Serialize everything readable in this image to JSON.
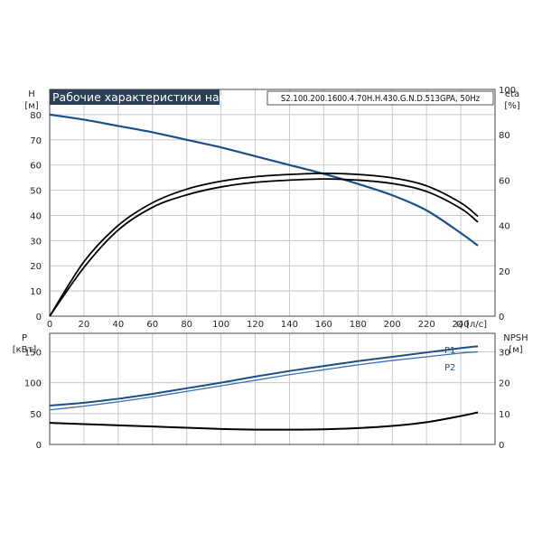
{
  "colors": {
    "title_bg": "#2b3f56",
    "h_curve": "#1a4f8a",
    "eta_curve": "#000000",
    "p1_curve": "#1a4f8a",
    "p2_curve": "#3a6fae",
    "npsh_curve": "#000000"
  },
  "chart_data": [
    {
      "type": "line",
      "title": "Рабочие характеристики насоса",
      "subtitle": "S2.100.200.1600.4.70H.H.430.G.N.D.513GPA, 50Hz",
      "xlabel": "Q [л/с]",
      "ylabel_left": "H",
      "ylabel_left_unit": "[м]",
      "ylabel_right": "eta",
      "ylabel_right_unit": "[%]",
      "xlim": [
        0,
        260
      ],
      "ylim_left": [
        0,
        90
      ],
      "ylim_right": [
        0,
        100
      ],
      "x_ticks": [
        0,
        20,
        40,
        60,
        80,
        100,
        120,
        140,
        160,
        180,
        200,
        220,
        240
      ],
      "y_ticks_left": [
        0,
        10,
        20,
        30,
        40,
        50,
        60,
        70,
        80
      ],
      "y_ticks_right": [
        0,
        20,
        40,
        60,
        80,
        100
      ],
      "grid": true,
      "series": [
        {
          "axis": "left",
          "color": "#1a4f8a",
          "x": [
            0,
            20,
            40,
            60,
            80,
            100,
            120,
            140,
            160,
            180,
            200,
            220,
            240,
            250
          ],
          "values": [
            80,
            78,
            75.5,
            73,
            70,
            67,
            63.5,
            60,
            56.5,
            52.5,
            48,
            42,
            33,
            28
          ]
        },
        {
          "axis": "right",
          "color": "#000000",
          "x": [
            0,
            20,
            40,
            60,
            80,
            100,
            120,
            140,
            160,
            180,
            200,
            220,
            240,
            250
          ],
          "values": [
            0,
            24,
            40,
            50,
            56,
            59.5,
            61.5,
            62.5,
            63,
            62.5,
            61,
            57.5,
            50,
            44
          ]
        },
        {
          "axis": "right",
          "color": "#000000",
          "x": [
            0,
            20,
            40,
            60,
            80,
            100,
            120,
            140,
            160,
            180,
            200,
            220,
            240,
            250
          ],
          "values": [
            0,
            21.5,
            38,
            48,
            53.5,
            57,
            59,
            60,
            60.5,
            60,
            58.5,
            55,
            47.5,
            41.5
          ]
        }
      ]
    },
    {
      "type": "line",
      "ylabel_left": "P",
      "ylabel_left_unit": "[кВт]",
      "ylabel_right": "NPSH",
      "ylabel_right_unit": "[м]",
      "xlim": [
        0,
        260
      ],
      "ylim_left": [
        0,
        180
      ],
      "ylim_right": [
        0,
        36
      ],
      "y_ticks_left": [
        0,
        50,
        100,
        150
      ],
      "y_ticks_right": [
        0,
        10,
        20,
        30
      ],
      "grid": true,
      "series": [
        {
          "name": "P1",
          "axis": "left",
          "color": "#1a4f8a",
          "x": [
            0,
            20,
            40,
            60,
            80,
            100,
            120,
            140,
            160,
            180,
            200,
            220,
            240,
            250
          ],
          "values": [
            63,
            67.5,
            74,
            82,
            91,
            100,
            110,
            119,
            127,
            135,
            142,
            149,
            156,
            159
          ]
        },
        {
          "name": "P2",
          "axis": "left",
          "color": "#3a6fae",
          "x": [
            0,
            20,
            40,
            60,
            80,
            100,
            120,
            140,
            160,
            180,
            200,
            220,
            240,
            250
          ],
          "values": [
            56,
            62,
            69,
            77,
            86,
            95,
            104,
            113,
            121,
            129,
            136,
            142,
            148,
            150
          ]
        },
        {
          "name": "NPSH",
          "axis": "right",
          "color": "#000000",
          "x": [
            0,
            20,
            40,
            60,
            80,
            100,
            120,
            140,
            160,
            180,
            200,
            220,
            240,
            250
          ],
          "values": [
            7,
            6.6,
            6.2,
            5.8,
            5.4,
            5.0,
            4.8,
            4.8,
            4.9,
            5.3,
            6.0,
            7.2,
            9.2,
            10.4
          ]
        }
      ]
    }
  ]
}
